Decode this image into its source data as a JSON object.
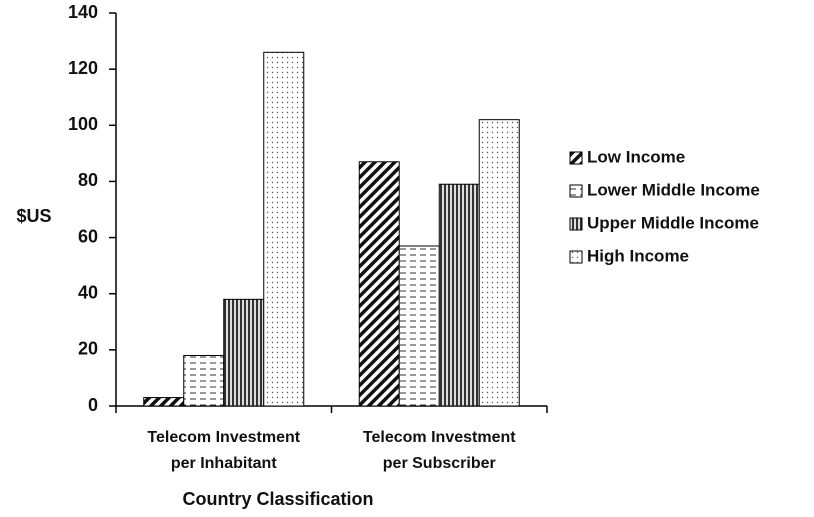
{
  "chart_data": {
    "type": "bar",
    "x_label": "Country Classification",
    "y_label": "$US",
    "categories": [
      [
        "Telecom Investment",
        "per Inhabitant"
      ],
      [
        "Telecom Investment",
        "per Subscriber"
      ]
    ],
    "series": [
      {
        "name": "Low Income",
        "pattern": "diagonal",
        "color": "#000000",
        "values": [
          3,
          87
        ]
      },
      {
        "name": "Lower Middle Income",
        "pattern": "dashes",
        "color": "#000000",
        "values": [
          18,
          57
        ]
      },
      {
        "name": "Upper Middle Income",
        "pattern": "vertical",
        "color": "#000000",
        "values": [
          38,
          79
        ]
      },
      {
        "name": "High Income",
        "pattern": "dots",
        "color": "#000000",
        "values": [
          126,
          102
        ]
      }
    ],
    "ylim": [
      0,
      140
    ],
    "yticks": [
      0,
      20,
      40,
      60,
      80,
      100,
      120,
      140
    ],
    "legend": "right"
  }
}
